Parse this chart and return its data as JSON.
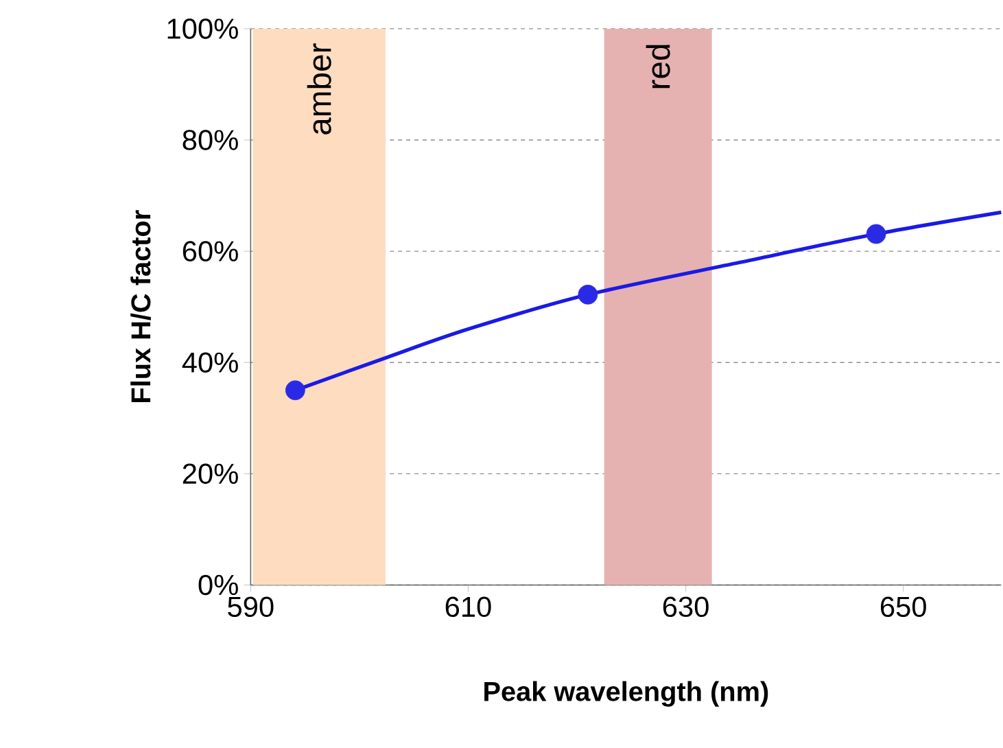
{
  "chart_data": {
    "type": "line",
    "xlabel": "Peak wavelength (nm)",
    "ylabel": "Flux H/C factor",
    "series": [
      {
        "marker": "none",
        "color": "#1a1ae6",
        "x": [
          594.1,
          602.5,
          610,
          621,
          635,
          647.5,
          659
        ],
        "values": [
          35,
          40.9,
          46,
          52.2,
          58,
          63.1,
          67
        ]
      },
      {
        "type": "scatter",
        "marker": "circle",
        "color": "#2a2ae6",
        "x": [
          594.1,
          621,
          647.5
        ],
        "values": [
          35,
          52.2,
          63.1
        ]
      }
    ],
    "bands": [
      {
        "axis": "x",
        "from": 590.2,
        "to": 602.4,
        "label": "amber",
        "color": "#fddcbf"
      },
      {
        "axis": "x",
        "from": 622.5,
        "to": 632.4,
        "label": "red",
        "color": "#e6b1b1"
      }
    ],
    "xlim": [
      590,
      659
    ],
    "xticks": [
      590,
      610,
      630,
      650
    ],
    "ylim": [
      0,
      100
    ],
    "yticks": [
      {
        "value": 0,
        "label": "0%"
      },
      {
        "value": 20,
        "label": "20%"
      },
      {
        "value": 40,
        "label": "40%"
      },
      {
        "value": 60,
        "label": "60%"
      },
      {
        "value": 80,
        "label": "80%"
      },
      {
        "value": 100,
        "label": "100%"
      }
    ],
    "grid": "y"
  }
}
